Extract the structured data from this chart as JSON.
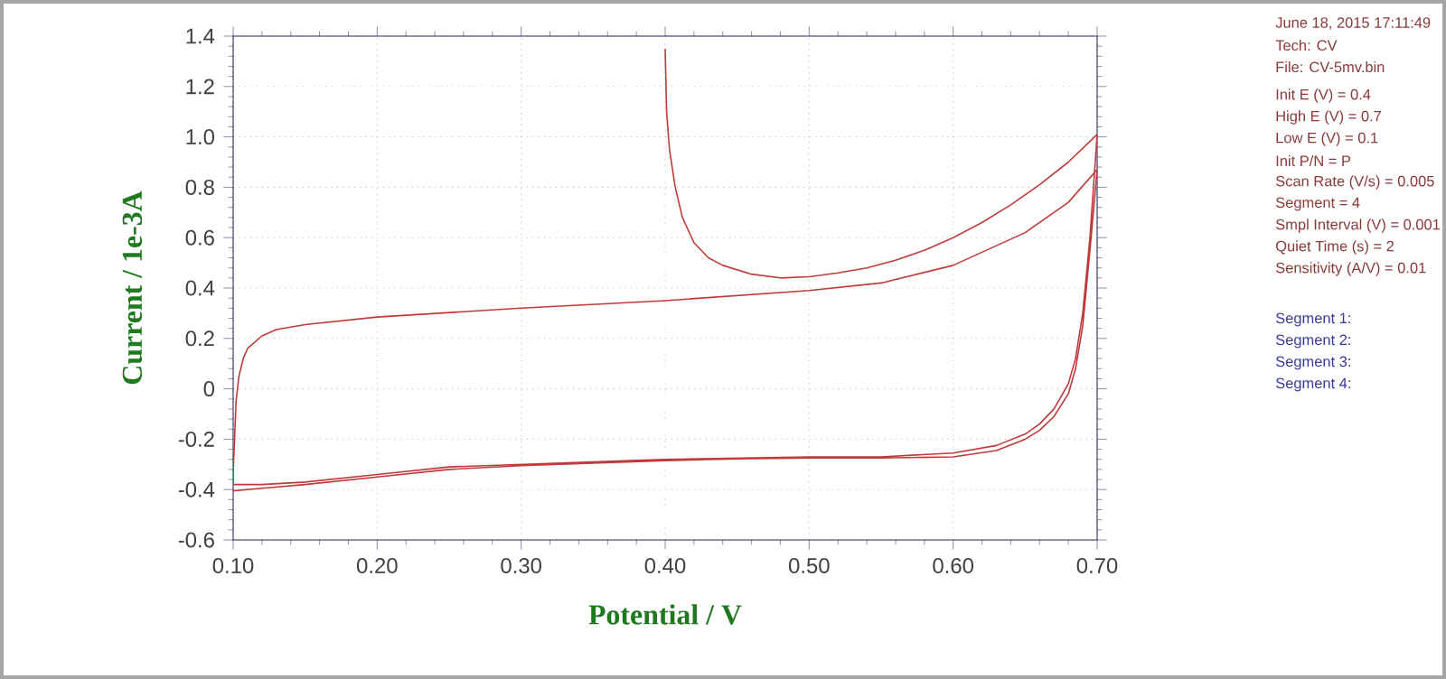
{
  "chart_data": {
    "type": "line",
    "xlabel": "Potential / V",
    "ylabel": "Current / 1e-3A",
    "xlim": [
      0.1,
      0.7
    ],
    "ylim": [
      -0.6,
      1.4
    ],
    "xticks": [
      {
        "value": 0.1,
        "label": "0.10"
      },
      {
        "value": 0.2,
        "label": "0.20"
      },
      {
        "value": 0.3,
        "label": "0.30"
      },
      {
        "value": 0.4,
        "label": "0.40"
      },
      {
        "value": 0.5,
        "label": "0.50"
      },
      {
        "value": 0.6,
        "label": "0.60"
      },
      {
        "value": 0.7,
        "label": "0.70"
      }
    ],
    "yticks": [
      -0.6,
      -0.4,
      -0.2,
      0,
      0.2,
      0.4,
      0.6,
      0.8,
      {
        "value": 1.0,
        "label": "1.0"
      },
      1.2,
      1.4
    ],
    "grid": true,
    "marker": "none",
    "line_style": "solid",
    "series": [
      {
        "color": "#c0393b",
        "x": [
          0.4,
          0.401,
          0.403,
          0.407,
          0.412,
          0.42,
          0.43,
          0.44,
          0.46,
          0.48,
          0.5,
          0.52,
          0.54,
          0.56,
          0.58,
          0.6,
          0.62,
          0.64,
          0.66,
          0.68,
          0.7,
          0.695,
          0.69,
          0.685,
          0.68,
          0.67,
          0.66,
          0.65,
          0.63,
          0.6,
          0.55,
          0.5,
          0.45,
          0.4,
          0.35,
          0.3,
          0.25,
          0.2,
          0.15,
          0.12,
          0.1,
          0.1,
          0.101,
          0.102,
          0.104,
          0.107,
          0.11,
          0.12,
          0.13,
          0.15,
          0.2,
          0.3,
          0.4,
          0.5,
          0.55,
          0.6,
          0.65,
          0.68,
          0.7,
          0.695,
          0.69,
          0.685,
          0.68,
          0.67,
          0.66,
          0.65,
          0.63,
          0.6,
          0.55,
          0.5,
          0.45,
          0.4,
          0.35,
          0.3,
          0.25,
          0.2,
          0.15,
          0.12,
          0.1
        ],
        "values": [
          1.35,
          1.1,
          0.95,
          0.8,
          0.68,
          0.58,
          0.52,
          0.49,
          0.455,
          0.44,
          0.445,
          0.46,
          0.48,
          0.51,
          0.55,
          0.6,
          0.66,
          0.73,
          0.81,
          0.9,
          1.01,
          0.6,
          0.3,
          0.12,
          0.02,
          -0.08,
          -0.14,
          -0.18,
          -0.225,
          -0.255,
          -0.27,
          -0.27,
          -0.275,
          -0.28,
          -0.29,
          -0.3,
          -0.31,
          -0.34,
          -0.37,
          -0.38,
          -0.38,
          -0.33,
          -0.2,
          -0.05,
          0.05,
          0.12,
          0.16,
          0.21,
          0.235,
          0.255,
          0.285,
          0.32,
          0.35,
          0.39,
          0.42,
          0.49,
          0.62,
          0.74,
          0.87,
          0.55,
          0.25,
          0.08,
          -0.02,
          -0.11,
          -0.165,
          -0.2,
          -0.245,
          -0.27,
          -0.275,
          -0.275,
          -0.278,
          -0.285,
          -0.295,
          -0.305,
          -0.32,
          -0.35,
          -0.38,
          -0.395,
          -0.405
        ]
      }
    ],
    "annotations": [
      "June 18, 2015   17:11:49",
      "Tech: CV",
      "File: CV-5mv.bin",
      "Init E (V) = 0.4",
      "High E (V) = 0.7",
      "Low E (V) = 0.1",
      "Init P/N = P",
      "Scan Rate (V/s) = 0.005",
      "Segment = 4",
      "Smpl Interval (V) = 0.001",
      "Quiet Time (s) = 2",
      "Sensitivity (A/V) = 0.01",
      "Segment 1:",
      "Segment 2:",
      "Segment 3:",
      "Segment 4:"
    ]
  }
}
